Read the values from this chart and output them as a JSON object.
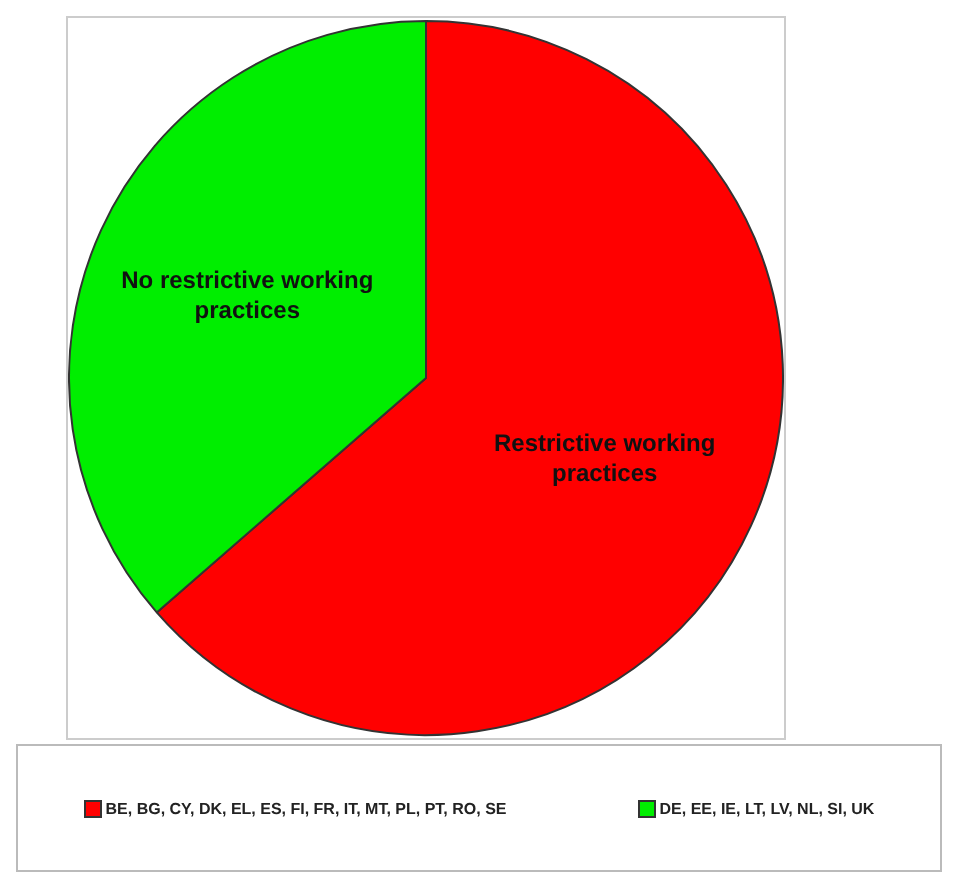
{
  "chart_data": {
    "type": "pie",
    "categories": [
      "Restrictive working practices",
      "No restrictive working practices"
    ],
    "values": [
      63.6,
      36.4
    ],
    "colors": [
      "#ff0000",
      "#00ee00"
    ],
    "annotations": [
      "BE, BG, CY, DK, EL, ES, FI, FR, IT, MT, PL, PT, RO, SE",
      "DE, EE, IE, LT, LV, NL, SI, UK"
    ]
  }
}
